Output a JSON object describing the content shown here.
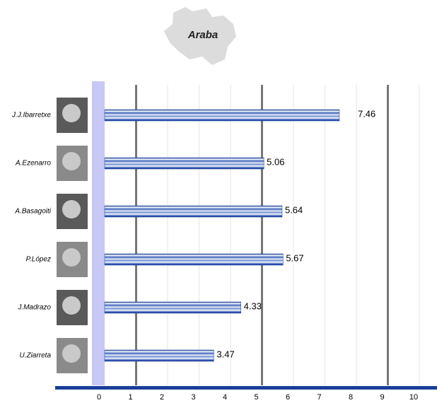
{
  "chart_data": {
    "type": "bar",
    "orientation": "horizontal",
    "title": "Araba",
    "categories": [
      "J.J.Ibarretxe",
      "A.Ezenarro",
      "A.Basagoiti",
      "P.López",
      "J.Madrazo",
      "U.Ziarreta"
    ],
    "values": [
      7.46,
      5.06,
      5.64,
      5.67,
      4.33,
      3.47
    ],
    "color": "#1a3f9a",
    "xlim": [
      0,
      10
    ],
    "xticks": [
      0,
      1,
      2,
      3,
      4,
      5,
      6,
      7,
      8,
      9,
      10
    ],
    "grid": true
  }
}
